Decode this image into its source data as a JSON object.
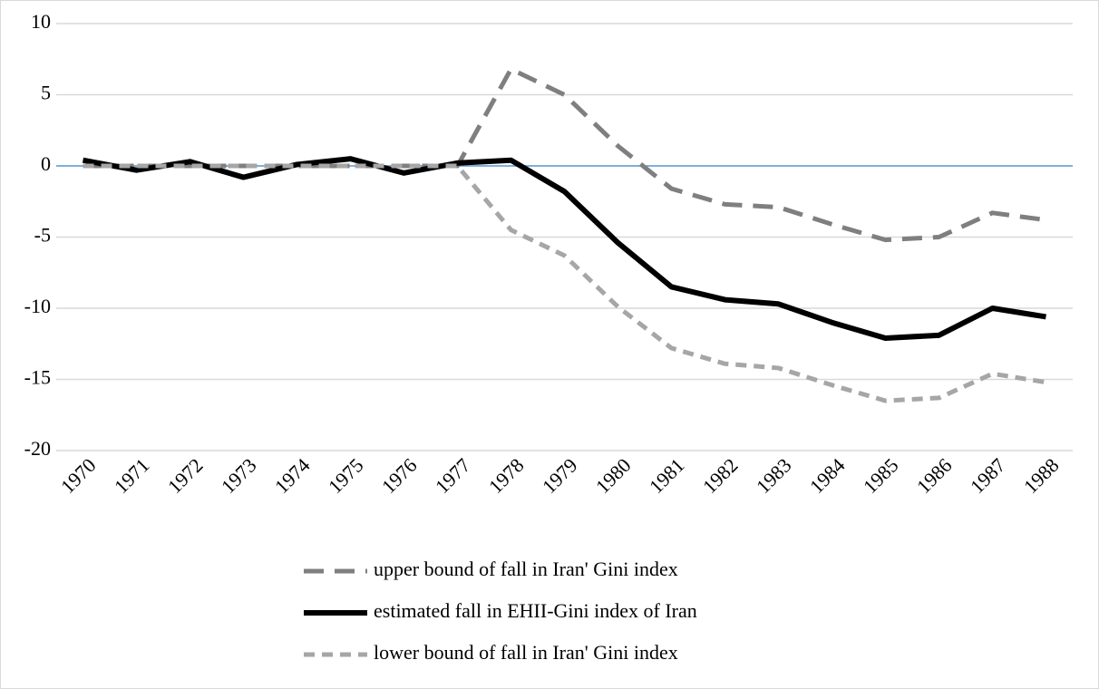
{
  "chart_data": {
    "type": "line",
    "categories": [
      "1970",
      "1971",
      "1972",
      "1973",
      "1974",
      "1975",
      "1976",
      "1977",
      "1978",
      "1979",
      "1980",
      "1981",
      "1982",
      "1983",
      "1984",
      "1985",
      "1986",
      "1987",
      "1988"
    ],
    "series": [
      {
        "name": "upper bound of fall in Iran' Gini index",
        "color": "#7f7f7f",
        "dash": "long",
        "values": [
          0,
          0,
          0,
          0,
          0,
          0,
          0,
          0,
          6.8,
          5,
          1.4,
          -1.6,
          -2.7,
          -2.9,
          -4.1,
          -5.2,
          -5,
          -3.3,
          -3.8
        ]
      },
      {
        "name": "estimated fall in EHII-Gini index of Iran",
        "color": "#000000",
        "dash": "solid",
        "values": [
          0.4,
          -0.3,
          0.3,
          -0.8,
          0.1,
          0.5,
          -0.5,
          0.2,
          0.4,
          -1.8,
          -5.4,
          -8.5,
          -9.4,
          -9.7,
          -11,
          -12.1,
          -11.9,
          -10,
          -10.6
        ]
      },
      {
        "name": "lower bound of fall in Iran' Gini index",
        "color": "#a6a6a6",
        "dash": "short",
        "values": [
          0,
          0,
          0,
          0,
          0,
          0,
          0,
          0,
          -4.5,
          -6.3,
          -9.9,
          -12.8,
          -13.9,
          -14.2,
          -15.4,
          -16.5,
          -16.3,
          -14.6,
          -15.2
        ]
      }
    ],
    "ylim": [
      -20,
      10
    ],
    "yticks": [
      -20,
      -15,
      -10,
      -5,
      0,
      5,
      10
    ],
    "grid": true,
    "zero_line_color": "#5b9bd5"
  }
}
